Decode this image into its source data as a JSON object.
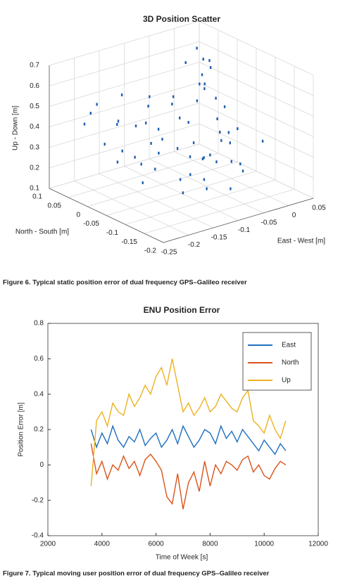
{
  "chart_data": [
    {
      "type": "scatter3d",
      "title": "3D Position Scatter",
      "xlabel": "East - West [m]",
      "ylabel": "North - South [m]",
      "zlabel": "Up - Down [m]",
      "x": [
        -0.2,
        -0.18,
        -0.15,
        -0.12,
        -0.1,
        -0.08,
        -0.05,
        -0.03,
        0,
        0.02,
        -0.22,
        -0.19,
        -0.16,
        -0.13,
        -0.11,
        -0.09,
        -0.06,
        -0.04,
        -0.01,
        0.03,
        -0.21,
        -0.17,
        -0.14,
        -0.12,
        -0.1,
        -0.07,
        -0.05,
        -0.02,
        0.01,
        0.04,
        -0.2,
        -0.16,
        -0.13,
        -0.1,
        -0.08,
        -0.06,
        -0.03,
        0,
        0.02,
        0.04,
        -0.18,
        -0.15,
        -0.11,
        -0.09,
        -0.07,
        -0.04,
        -0.02,
        0.01,
        0.03,
        0.05,
        -0.17,
        -0.13,
        -0.1,
        -0.05,
        0,
        0.02,
        0.03,
        0.04,
        0.01,
        0
      ],
      "y": [
        0.02,
        -0.05,
        0.05,
        -0.1,
        0,
        -0.08,
        0.04,
        -0.12,
        -0.02,
        0.06,
        -0.04,
        0.07,
        -0.06,
        0.03,
        -0.13,
        0.05,
        -0.09,
        0.01,
        -0.06,
        0.03,
        0.06,
        -0.02,
        -0.1,
        0.08,
        -0.04,
        -0.07,
        0.02,
        -0.05,
        0,
        -0.08,
        -0.08,
        0.04,
        -0.01,
        -0.11,
        0.06,
        -0.03,
        -0.09,
        0.04,
        -0.04,
        0.02,
        0,
        -0.12,
        0.03,
        -0.06,
        -0.14,
        0.05,
        -0.1,
        -0.03,
        0.06,
        0.07,
        0.08,
        -0.03,
        0.01,
        -0.06,
        0.07,
        0.05,
        0.08,
        0.06,
        0.04,
        0.02
      ],
      "z": [
        0.35,
        0.3,
        0.4,
        0.25,
        0.32,
        0.28,
        0.42,
        0.22,
        0.3,
        0.45,
        0.33,
        0.45,
        0.27,
        0.38,
        0.2,
        0.43,
        0.26,
        0.35,
        0.29,
        0.4,
        0.42,
        0.3,
        0.24,
        0.48,
        0.31,
        0.27,
        0.37,
        0.3,
        0.34,
        0.28,
        0.25,
        0.4,
        0.33,
        0.22,
        0.46,
        0.3,
        0.24,
        0.4,
        0.32,
        0.36,
        0.32,
        0.2,
        0.38,
        0.28,
        0.18,
        0.44,
        0.23,
        0.3,
        0.42,
        0.5,
        0.47,
        0.3,
        0.36,
        0.26,
        0.56,
        0.58,
        0.6,
        0.55,
        0.52,
        0.5
      ],
      "color": "#1f5fb0",
      "xlim": [
        -0.25,
        0.05
      ],
      "ylim": [
        -0.2,
        0.1
      ],
      "zlim": [
        0.1,
        0.7
      ],
      "xticks": [
        -0.25,
        -0.2,
        -0.15,
        -0.1,
        -0.05,
        0,
        0.05
      ],
      "yticks": [
        -0.2,
        -0.15,
        -0.1,
        -0.05,
        0,
        0.05,
        0.1
      ],
      "zticks": [
        0.1,
        0.2,
        0.3,
        0.4,
        0.5,
        0.6,
        0.7
      ],
      "grid": true,
      "caption": "Figure 6. Typical static position error of dual frequency GPS–Galileo receiver"
    },
    {
      "type": "line",
      "title": "ENU Position Error",
      "xlabel": "Time of Week [s]",
      "ylabel": "Position Error [m]",
      "x": [
        3600,
        3800,
        4000,
        4200,
        4400,
        4600,
        4800,
        5000,
        5200,
        5400,
        5600,
        5800,
        6000,
        6200,
        6400,
        6600,
        6800,
        7000,
        7200,
        7400,
        7600,
        7800,
        8000,
        8200,
        8400,
        8600,
        8800,
        9000,
        9200,
        9400,
        9600,
        9800,
        10000,
        10200,
        10400,
        10600,
        10800
      ],
      "series": [
        {
          "name": "East",
          "color": "#1f6fc0",
          "values": [
            0.2,
            0.1,
            0.18,
            0.12,
            0.22,
            0.14,
            0.1,
            0.16,
            0.13,
            0.2,
            0.11,
            0.15,
            0.18,
            0.1,
            0.14,
            0.2,
            0.12,
            0.22,
            0.16,
            0.1,
            0.14,
            0.2,
            0.18,
            0.12,
            0.22,
            0.15,
            0.19,
            0.13,
            0.2,
            0.16,
            0.12,
            0.08,
            0.14,
            0.1,
            0.06,
            0.12,
            0.08
          ]
        },
        {
          "name": "North",
          "color": "#d9541a",
          "values": [
            0.12,
            -0.05,
            0.02,
            -0.08,
            0,
            -0.03,
            0.05,
            -0.02,
            0.02,
            -0.06,
            0.03,
            0.06,
            0.02,
            -0.03,
            -0.18,
            -0.22,
            -0.05,
            -0.25,
            -0.1,
            -0.04,
            -0.15,
            0.02,
            -0.12,
            0,
            -0.05,
            0.02,
            0,
            -0.03,
            0.03,
            0.05,
            -0.04,
            0,
            -0.06,
            -0.08,
            -0.02,
            0.02,
            0
          ]
        },
        {
          "name": "Up",
          "color": "#edb120",
          "values": [
            -0.12,
            0.25,
            0.3,
            0.22,
            0.35,
            0.3,
            0.28,
            0.4,
            0.33,
            0.38,
            0.45,
            0.4,
            0.5,
            0.55,
            0.45,
            0.6,
            0.45,
            0.3,
            0.35,
            0.28,
            0.32,
            0.38,
            0.3,
            0.33,
            0.4,
            0.36,
            0.32,
            0.3,
            0.38,
            0.42,
            0.25,
            0.22,
            0.18,
            0.28,
            0.2,
            0.15,
            0.25
          ]
        }
      ],
      "xlim": [
        2000,
        12000
      ],
      "ylim": [
        -0.4,
        0.8
      ],
      "xticks": [
        2000,
        4000,
        6000,
        8000,
        10000,
        12000
      ],
      "yticks": [
        -0.4,
        -0.2,
        0,
        0.2,
        0.4,
        0.6,
        0.8
      ],
      "legend": "northeast",
      "grid": false,
      "caption": "Figure 7. Typical moving user position error of dual frequency GPS–Galileo receiver"
    }
  ]
}
